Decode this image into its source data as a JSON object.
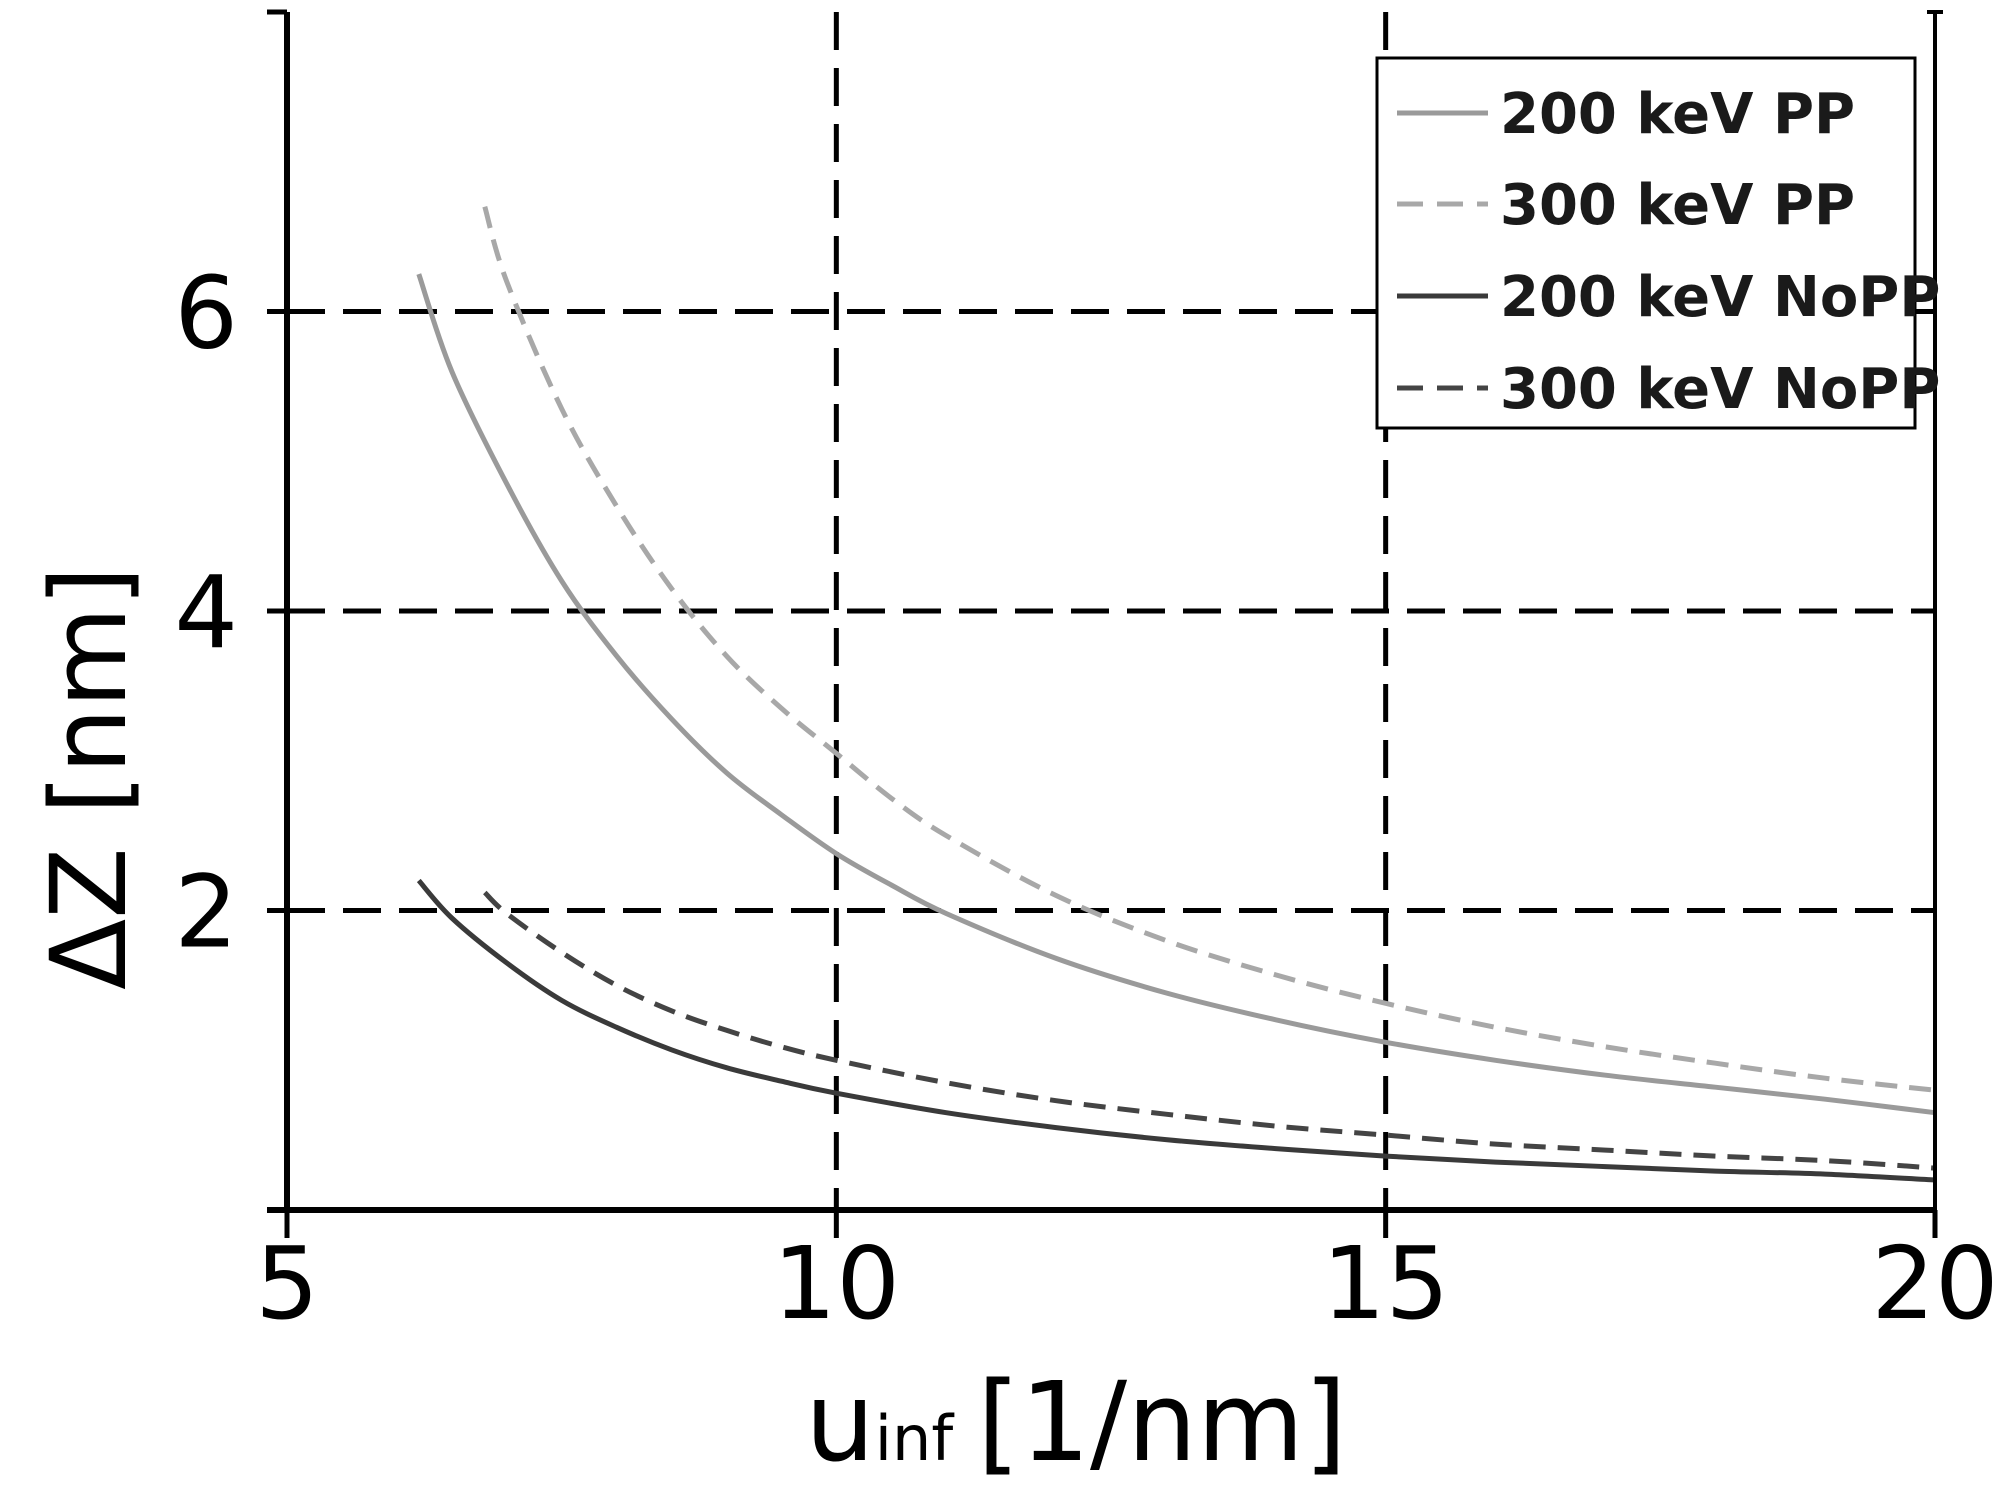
{
  "chart_data": {
    "type": "line",
    "xlabel_main": "u",
    "xlabel_sub": "inf",
    "xlabel_unit": "[1/nm]",
    "ylabel": "ΔZ [nm]",
    "xlim": [
      5,
      20
    ],
    "ylim": [
      0,
      8
    ],
    "xticks": [
      5,
      10,
      15,
      20
    ],
    "xtick_labels": [
      "5",
      "10",
      "15",
      "20"
    ],
    "yticks": [
      2,
      4,
      6
    ],
    "ytick_labels": [
      "2",
      "4",
      "6"
    ],
    "grid": "dashed, at ticks",
    "legend_position": "top-right",
    "series": [
      {
        "name": "200 keV PP",
        "color": "#9a9a9a",
        "dash": "solid",
        "x": [
          6.2,
          6.5,
          7,
          7.5,
          8,
          8.5,
          9,
          9.5,
          10,
          10.5,
          11,
          12,
          13,
          14,
          15,
          16,
          17,
          18,
          19,
          20
        ],
        "y": [
          6.25,
          5.6,
          4.85,
          4.2,
          3.7,
          3.28,
          2.92,
          2.64,
          2.38,
          2.17,
          1.98,
          1.68,
          1.45,
          1.27,
          1.12,
          1.0,
          0.9,
          0.82,
          0.74,
          0.65
        ]
      },
      {
        "name": "300 keV PP",
        "color": "#a8a8a8",
        "dash": "dashed",
        "x": [
          6.8,
          7,
          7.5,
          8,
          8.5,
          9,
          9.5,
          10,
          10.5,
          11,
          12,
          13,
          14,
          15,
          16,
          17,
          18,
          19,
          20
        ],
        "y": [
          6.7,
          6.2,
          5.35,
          4.7,
          4.15,
          3.7,
          3.35,
          3.05,
          2.75,
          2.5,
          2.1,
          1.8,
          1.57,
          1.38,
          1.22,
          1.09,
          0.98,
          0.88,
          0.8
        ]
      },
      {
        "name": "200 keV NoPP",
        "color": "#3a3a3a",
        "dash": "solid",
        "x": [
          6.2,
          6.5,
          7,
          7.5,
          8,
          8.5,
          9,
          9.5,
          10,
          11,
          12,
          13,
          14,
          15,
          16,
          17,
          18,
          19,
          20
        ],
        "y": [
          2.2,
          1.95,
          1.65,
          1.4,
          1.22,
          1.07,
          0.95,
          0.86,
          0.78,
          0.65,
          0.55,
          0.47,
          0.41,
          0.36,
          0.32,
          0.29,
          0.26,
          0.24,
          0.2
        ]
      },
      {
        "name": "300 keV NoPP",
        "color": "#444444",
        "dash": "dashed",
        "x": [
          6.8,
          7,
          7.5,
          8,
          8.5,
          9,
          9.5,
          10,
          11,
          12,
          13,
          14,
          15,
          16,
          17,
          18,
          19,
          20
        ],
        "y": [
          2.12,
          1.98,
          1.72,
          1.5,
          1.33,
          1.2,
          1.09,
          1.0,
          0.85,
          0.73,
          0.64,
          0.56,
          0.5,
          0.44,
          0.4,
          0.36,
          0.33,
          0.28
        ]
      }
    ]
  }
}
